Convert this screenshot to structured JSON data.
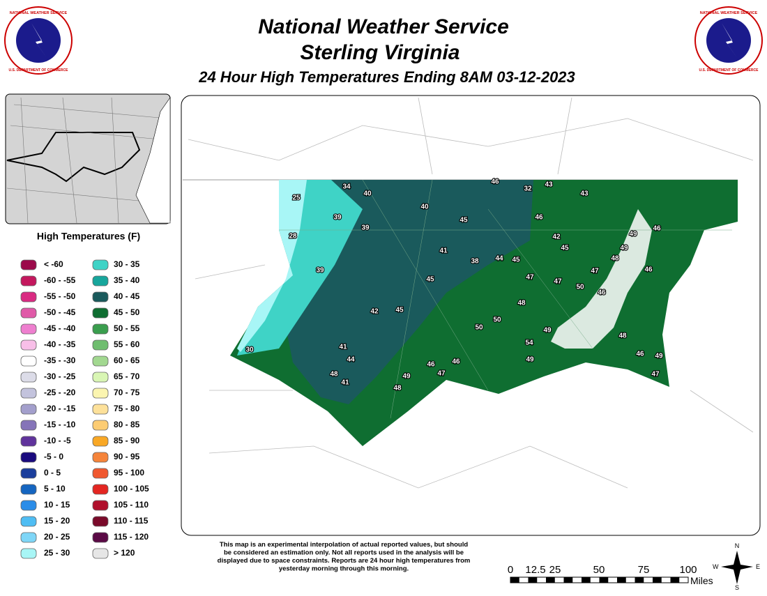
{
  "header": {
    "title": "National Weather Service",
    "subtitle": "Sterling Virginia",
    "product": "24 Hour High Temperatures Ending 8AM 03-12-2023"
  },
  "legend": {
    "title": "High Temperatures (F)",
    "items": [
      {
        "label": "< -60",
        "color": "#9b0a4a"
      },
      {
        "label": "-60 - -55",
        "color": "#c4185e"
      },
      {
        "label": "-55 - -50",
        "color": "#d92b82"
      },
      {
        "label": "-50 - -45",
        "color": "#e05aa8"
      },
      {
        "label": "-45 - -40",
        "color": "#ee7fcf"
      },
      {
        "label": "-40 - -35",
        "color": "#f8bfe8"
      },
      {
        "label": "-35 - -30",
        "color": "#ffffff"
      },
      {
        "label": "-30 - -25",
        "color": "#dcdce8"
      },
      {
        "label": "-25 - -20",
        "color": "#c3c3dd"
      },
      {
        "label": "-20 - -15",
        "color": "#a39fcc"
      },
      {
        "label": "-15 - -10",
        "color": "#8574b8"
      },
      {
        "label": "-10 - -5",
        "color": "#60339c"
      },
      {
        "label": "-5 - 0",
        "color": "#1a0a7e"
      },
      {
        "label": "0 - 5",
        "color": "#1b3e9c"
      },
      {
        "label": "5 - 10",
        "color": "#1565c0"
      },
      {
        "label": "10 - 15",
        "color": "#2b8de8"
      },
      {
        "label": "15 - 20",
        "color": "#4fbdf3"
      },
      {
        "label": "20 - 25",
        "color": "#7fd6f7"
      },
      {
        "label": "25 - 30",
        "color": "#a8f6f6"
      },
      {
        "label": "30 - 35",
        "color": "#3fd3c6"
      },
      {
        "label": "35 - 40",
        "color": "#17a69c"
      },
      {
        "label": "40 - 45",
        "color": "#1a5a5c"
      },
      {
        "label": "45 - 50",
        "color": "#0f6e31"
      },
      {
        "label": "50 - 55",
        "color": "#3a9e4e"
      },
      {
        "label": "55 - 60",
        "color": "#6fbd6f"
      },
      {
        "label": "60 - 65",
        "color": "#a2d890"
      },
      {
        "label": "65 - 70",
        "color": "#d9f6b4"
      },
      {
        "label": "70 - 75",
        "color": "#fbf5b0"
      },
      {
        "label": "75 - 80",
        "color": "#fde19a"
      },
      {
        "label": "80 - 85",
        "color": "#fccc73"
      },
      {
        "label": "85 - 90",
        "color": "#f9a825"
      },
      {
        "label": "90 - 95",
        "color": "#f5843a"
      },
      {
        "label": "95 - 100",
        "color": "#f0582f"
      },
      {
        "label": "100 - 105",
        "color": "#e42621"
      },
      {
        "label": "105 - 110",
        "color": "#b0102c"
      },
      {
        "label": "110 - 115",
        "color": "#7a0a2a"
      },
      {
        "label": "115 - 120",
        "color": "#5a0a45"
      },
      {
        "label": "> 120",
        "color": "#e6e6e6"
      }
    ]
  },
  "stations": [
    25,
    34,
    40,
    46,
    32,
    43,
    43,
    39,
    39,
    40,
    45,
    46,
    28,
    41,
    42,
    45,
    49,
    46,
    49,
    48,
    39,
    38,
    44,
    45,
    47,
    46,
    45,
    47,
    47,
    50,
    46,
    48,
    42,
    45,
    50,
    50,
    49,
    54,
    48,
    30,
    41,
    44,
    46,
    46,
    49,
    46,
    49,
    48,
    47,
    49,
    41,
    47,
    48
  ],
  "disclaimer": [
    "This map is an experimental interpolation of actual reported values, but should",
    "be considered an estimation only. Not all reports used in the analysis will be",
    "displayed due to space constraints. Reports are 24 hour high temperatures from",
    "yesterday morning through this morning."
  ],
  "scale": {
    "ticks": [
      "0",
      "12.5",
      "25",
      "50",
      "75",
      "100"
    ],
    "unit": "Miles"
  },
  "compass": {
    "n": "N",
    "e": "E",
    "s": "S",
    "w": "W"
  },
  "logo_text": {
    "top": "NATIONAL WEATHER SERVICE",
    "bottom": "U.S. DEPARTMENT OF COMMERCE"
  }
}
